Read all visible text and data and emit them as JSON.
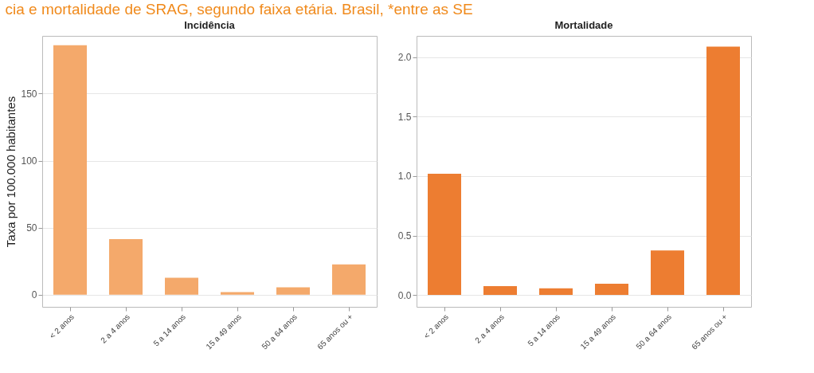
{
  "chart_data": [
    {
      "type": "bar",
      "title": "Incidência",
      "ylabel": "Taxa por 100.000 habitantes",
      "annotations": [
        "cia e mortalidade de SRAG, segundo faixa etária. Brasil, *entre as SE"
      ],
      "categories": [
        "< 2 anos",
        "2 a 4 anos",
        "5 a 14 anos",
        "15 a 49 anos",
        "50 a 64 anos",
        "65 anos ou +"
      ],
      "values": [
        186,
        41.5,
        12.7,
        2,
        5.5,
        22.7
      ],
      "color": "#f4a96b",
      "ylim": [
        -9,
        193
      ],
      "yticks": [
        0,
        50,
        100,
        150
      ],
      "grid": "y"
    },
    {
      "type": "bar",
      "title": "Mortalidade",
      "categories": [
        "< 2 anos",
        "2 a 4 anos",
        "5 a 14 anos",
        "15 a 49 anos",
        "50 a 64 anos",
        "65 anos ou +"
      ],
      "values": [
        1.02,
        0.075,
        0.056,
        0.094,
        0.375,
        2.09
      ],
      "color": "#ed7d31",
      "ylim": [
        -0.1,
        2.18
      ],
      "yticks": [
        {
          "value": 0,
          "label": "0.0"
        },
        {
          "value": 0.5,
          "label": "0.5"
        },
        {
          "value": 1,
          "label": "1.0"
        },
        {
          "value": 1.5,
          "label": "1.5"
        },
        {
          "value": 2,
          "label": "2.0"
        }
      ],
      "grid": "y"
    }
  ]
}
